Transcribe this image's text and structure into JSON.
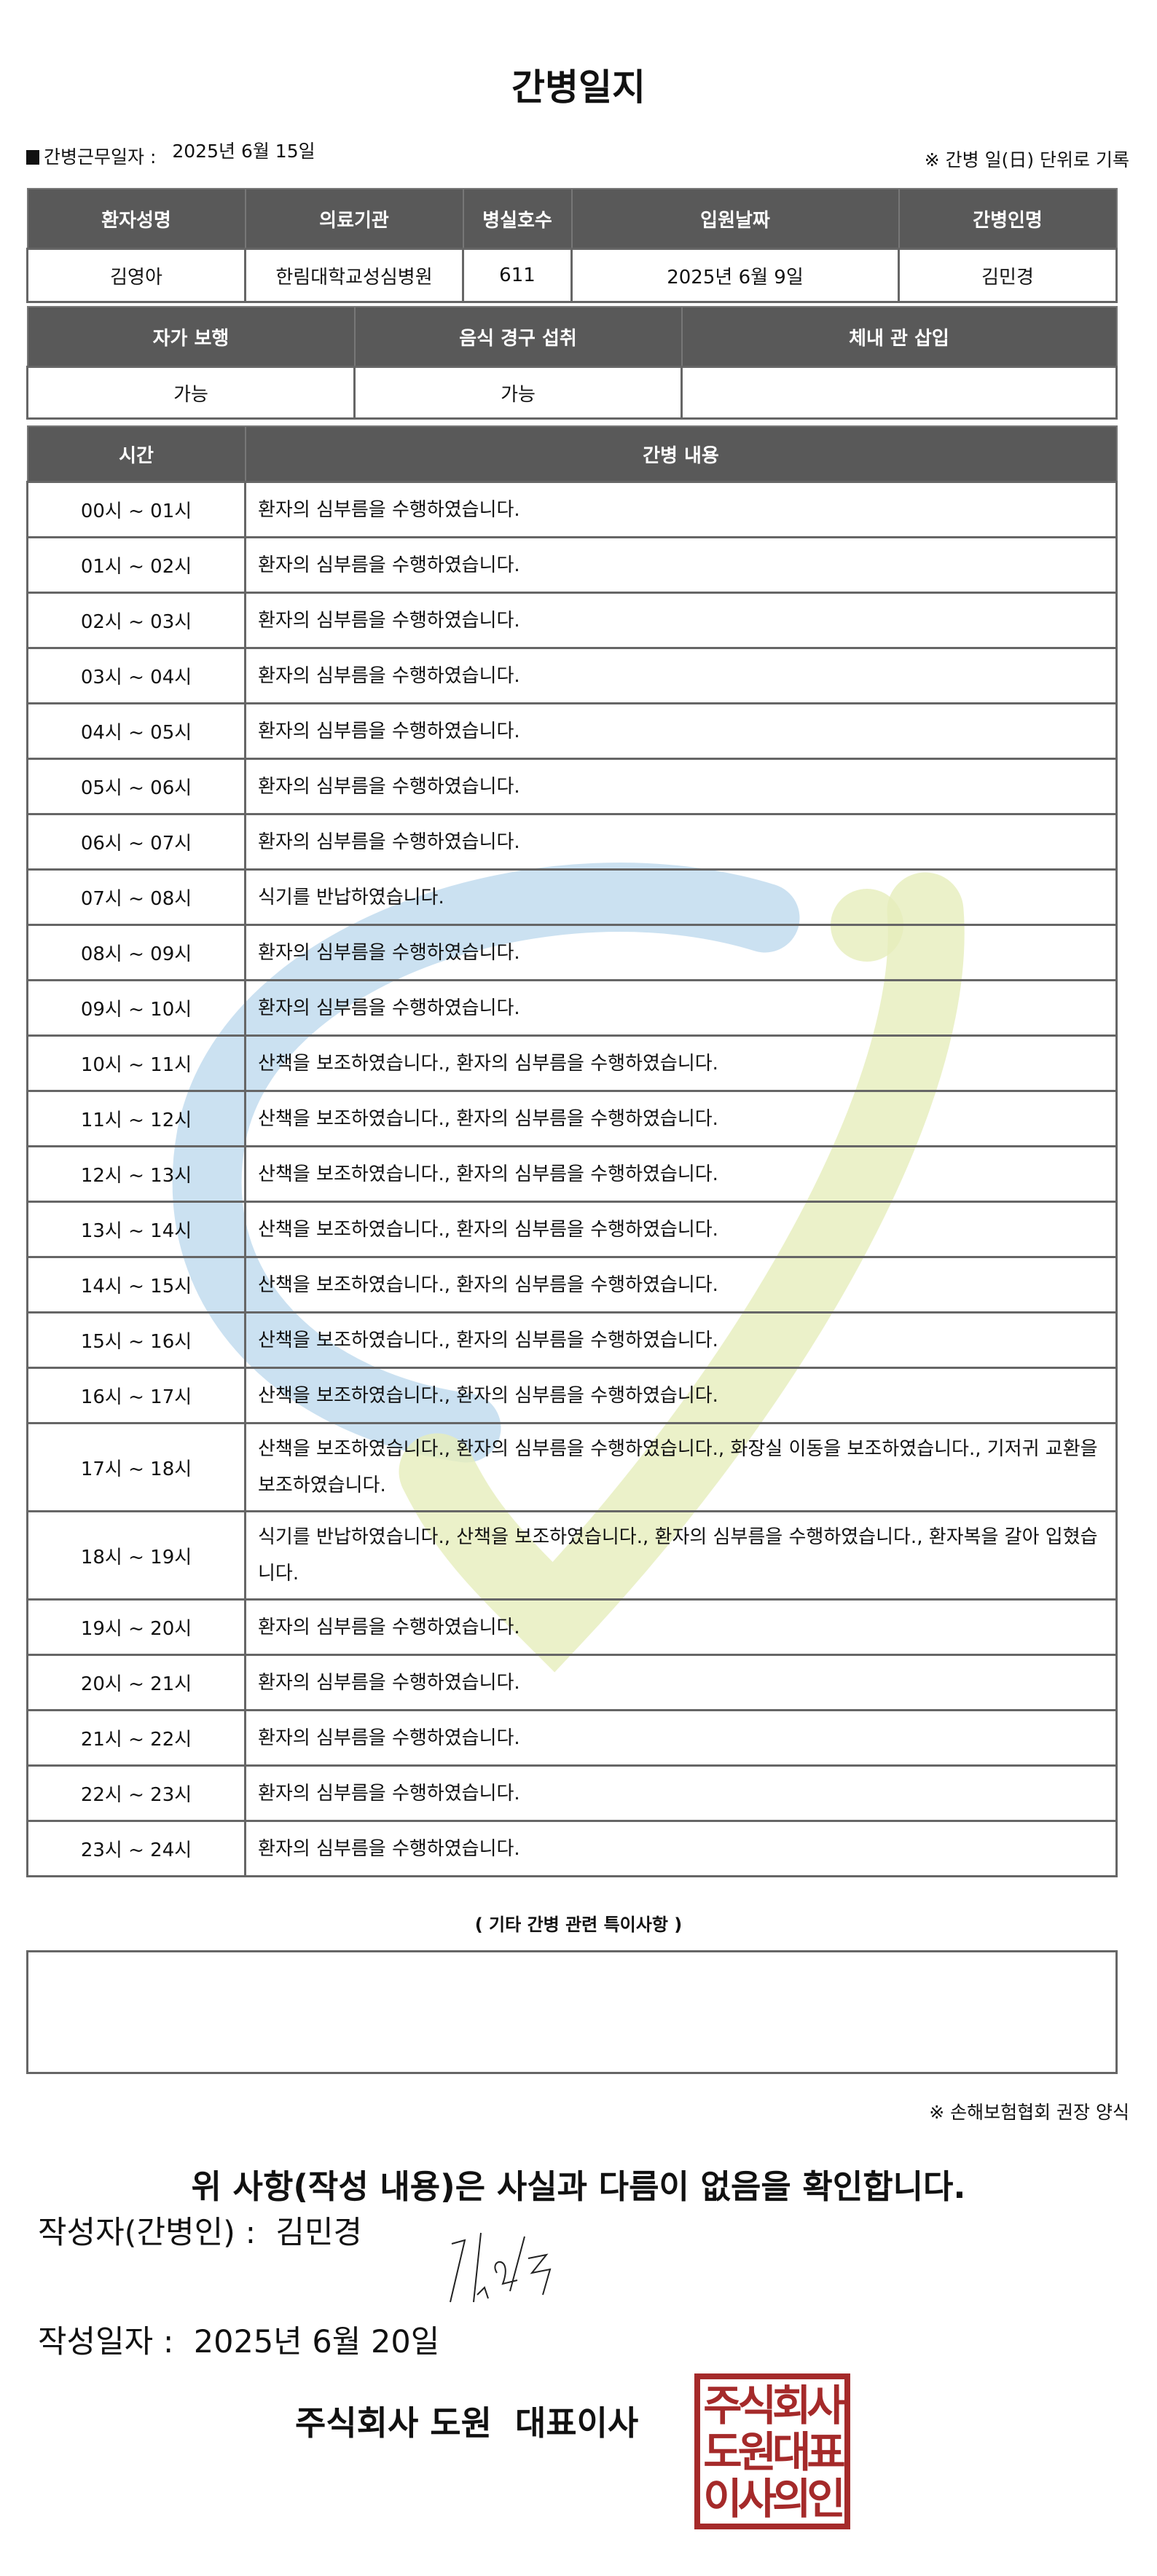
{
  "title": "간병일지",
  "meta": {
    "work_date_label": "간병근무일자 :",
    "work_date": "2025년 6월 15일",
    "note": "※ 간병 일(日) 단위로 기록"
  },
  "info_table": {
    "headers": [
      "환자성명",
      "의료기관",
      "병실호수",
      "입원날짜",
      "간병인명"
    ],
    "values": [
      "김영아",
      "한림대학교성심병원",
      "611",
      "2025년 6월 9일",
      "김민경"
    ]
  },
  "status_table": {
    "headers": [
      "자가 보행",
      "음식 경구 섭취",
      "체내 관 삽입"
    ],
    "values": [
      "가능",
      "가능",
      ""
    ]
  },
  "log_table": {
    "headers": [
      "시간",
      "간병 내용"
    ],
    "rows": [
      {
        "time": "00시 ~ 01시",
        "content": "환자의 심부름을 수행하였습니다."
      },
      {
        "time": "01시 ~ 02시",
        "content": "환자의 심부름을 수행하였습니다."
      },
      {
        "time": "02시 ~ 03시",
        "content": "환자의 심부름을 수행하였습니다."
      },
      {
        "time": "03시 ~ 04시",
        "content": "환자의 심부름을 수행하였습니다."
      },
      {
        "time": "04시 ~ 05시",
        "content": "환자의 심부름을 수행하였습니다."
      },
      {
        "time": "05시 ~ 06시",
        "content": "환자의 심부름을 수행하였습니다."
      },
      {
        "time": "06시 ~ 07시",
        "content": "환자의 심부름을 수행하였습니다."
      },
      {
        "time": "07시 ~ 08시",
        "content": "식기를 반납하였습니다."
      },
      {
        "time": "08시 ~ 09시",
        "content": "환자의 심부름을 수행하였습니다."
      },
      {
        "time": "09시 ~ 10시",
        "content": "환자의 심부름을 수행하였습니다."
      },
      {
        "time": "10시 ~ 11시",
        "content": "산책을 보조하였습니다., 환자의 심부름을 수행하였습니다."
      },
      {
        "time": "11시 ~ 12시",
        "content": "산책을 보조하였습니다., 환자의 심부름을 수행하였습니다."
      },
      {
        "time": "12시 ~ 13시",
        "content": "산책을 보조하였습니다., 환자의 심부름을 수행하였습니다."
      },
      {
        "time": "13시 ~ 14시",
        "content": "산책을 보조하였습니다., 환자의 심부름을 수행하였습니다."
      },
      {
        "time": "14시 ~ 15시",
        "content": "산책을 보조하였습니다., 환자의 심부름을 수행하였습니다."
      },
      {
        "time": "15시 ~ 16시",
        "content": "산책을 보조하였습니다., 환자의 심부름을 수행하였습니다."
      },
      {
        "time": "16시 ~ 17시",
        "content": "산책을 보조하였습니다., 환자의 심부름을 수행하였습니다."
      },
      {
        "time": "17시 ~ 18시",
        "content": "산책을 보조하였습니다., 환자의 심부름을 수행하였습니다., 화장실 이동을 보조하였습니다., 기저귀 교환을 보조하였습니다."
      },
      {
        "time": "18시 ~ 19시",
        "content": "식기를 반납하였습니다., 산책을 보조하였습니다., 환자의 심부름을 수행하였습니다., 환자복을 갈아 입혔습니다."
      },
      {
        "time": "19시 ~ 20시",
        "content": "환자의 심부름을 수행하였습니다."
      },
      {
        "time": "20시 ~ 21시",
        "content": "환자의 심부름을 수행하였습니다."
      },
      {
        "time": "21시 ~ 22시",
        "content": "환자의 심부름을 수행하였습니다."
      },
      {
        "time": "22시 ~ 23시",
        "content": "환자의 심부름을 수행하였습니다."
      },
      {
        "time": "23시 ~ 24시",
        "content": "환자의 심부름을 수행하였습니다."
      }
    ]
  },
  "notes": {
    "title": "( 기타 간병 관련 특이사항 )",
    "content": ""
  },
  "form_note": "※ 손해보험협회 권장 양식",
  "confirm": "위 사항(작성 내용)은 사실과 다름이 없음을 확인합니다.",
  "writer": {
    "label": "작성자(간병인) :",
    "name": "김민경"
  },
  "written_date": {
    "label": "작성일자 :",
    "value": "2025년 6월 20일"
  },
  "company": "주식회사 도원  대표이사",
  "stamp_text": "주식회사도원대표이사의인",
  "colors": {
    "header_bg": "#595959",
    "stamp": "#a52a2a",
    "watermark_blue": "#b9d7ec",
    "watermark_green": "#e6eebc"
  }
}
